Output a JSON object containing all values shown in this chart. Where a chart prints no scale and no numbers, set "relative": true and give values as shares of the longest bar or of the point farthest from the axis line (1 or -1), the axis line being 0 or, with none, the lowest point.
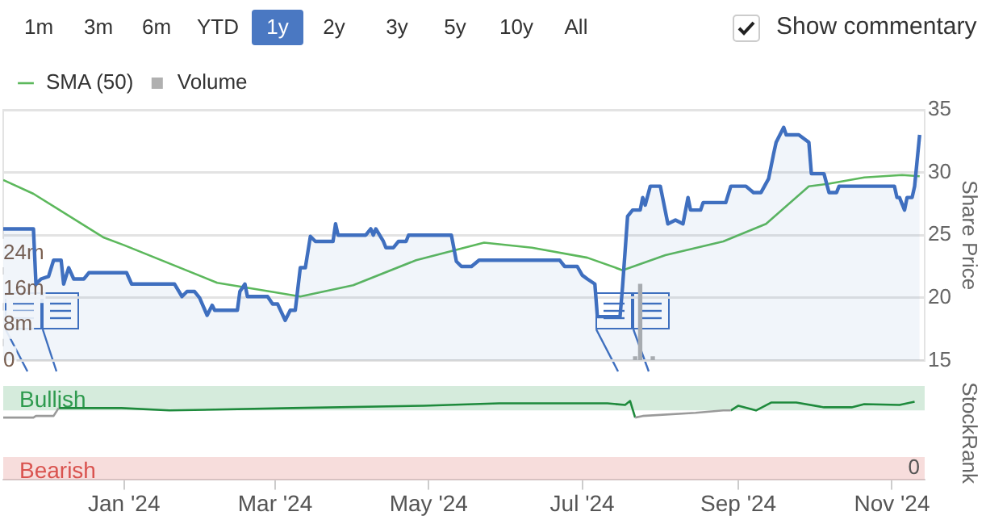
{
  "chart_data": [
    {
      "type": "line",
      "xlim": [
        "2023-11-14",
        "2024-11-14"
      ],
      "ylim": [
        15,
        35
      ],
      "yticks": [
        15,
        20,
        25,
        30,
        35
      ],
      "ylabel": "Share Price",
      "y2lim": [
        0,
        56000000
      ],
      "y2ticks": [
        {
          "value": 0,
          "label": "0"
        },
        {
          "value": 8000000,
          "label": "8m"
        },
        {
          "value": 16000000,
          "label": "16m"
        },
        {
          "value": 24000000,
          "label": "24m"
        }
      ],
      "grid": "y",
      "legend": "top left",
      "tick_labels": "y",
      "marker": "none",
      "series": [
        {
          "type": "area",
          "color": "#3f6fbf",
          "x": [
            "2023-11-14",
            "2023-11-26",
            "2023-11-27",
            "2023-11-29",
            "2023-12-02",
            "2023-12-04",
            "2023-12-07",
            "2023-12-08",
            "2023-12-10",
            "2023-12-12",
            "2023-12-16",
            "2023-12-18",
            "2024-01-02",
            "2024-01-04",
            "2024-01-21",
            "2024-01-24",
            "2024-01-26",
            "2024-01-29",
            "2024-01-31",
            "2024-02-03",
            "2024-02-05",
            "2024-02-06",
            "2024-02-15",
            "2024-02-16",
            "2024-02-18",
            "2024-02-19",
            "2024-02-27",
            "2024-02-29",
            "2024-03-02",
            "2024-03-05",
            "2024-03-07",
            "2024-03-09",
            "2024-03-11",
            "2024-03-13",
            "2024-03-15",
            "2024-03-17",
            "2024-03-24",
            "2024-03-25",
            "2024-03-26",
            "2024-04-06",
            "2024-04-08",
            "2024-04-09",
            "2024-04-10",
            "2024-04-13",
            "2024-04-14",
            "2024-04-17",
            "2024-04-19",
            "2024-04-22",
            "2024-04-23",
            "2024-05-10",
            "2024-05-12",
            "2024-05-14",
            "2024-05-18",
            "2024-05-21",
            "2024-06-22",
            "2024-06-24",
            "2024-06-29",
            "2024-07-01",
            "2024-07-03",
            "2024-07-06",
            "2024-07-07",
            "2024-07-16",
            "2024-07-17",
            "2024-07-19",
            "2024-07-21",
            "2024-07-24",
            "2024-07-25",
            "2024-07-26",
            "2024-07-28",
            "2024-08-01",
            "2024-08-04",
            "2024-08-07",
            "2024-08-10",
            "2024-08-12",
            "2024-08-13",
            "2024-08-17",
            "2024-08-18",
            "2024-08-27",
            "2024-08-29",
            "2024-09-04",
            "2024-09-07",
            "2024-09-10",
            "2024-09-13",
            "2024-09-15",
            "2024-09-16",
            "2024-09-19",
            "2024-09-20",
            "2024-09-25",
            "2024-09-29",
            "2024-09-30",
            "2024-10-05",
            "2024-10-07",
            "2024-10-10",
            "2024-10-11",
            "2024-11-02",
            "2024-11-03",
            "2024-11-04",
            "2024-11-06",
            "2024-11-07",
            "2024-11-09",
            "2024-11-10",
            "2024-11-12"
          ],
          "values": [
            25.5,
            25.5,
            21.1,
            21.5,
            21.7,
            23,
            23,
            21.1,
            22.4,
            21.5,
            21.5,
            22,
            22,
            21.1,
            21.1,
            20.1,
            20.5,
            20.5,
            20,
            18.6,
            19.4,
            19,
            19,
            20.5,
            21.1,
            20.1,
            20.1,
            19.5,
            19.5,
            18.2,
            19,
            19,
            22.4,
            22.4,
            24.9,
            24.5,
            24.5,
            25.9,
            25,
            25,
            25.5,
            25,
            25.5,
            24.5,
            24,
            24,
            24.5,
            24.5,
            25,
            25,
            22.9,
            22.5,
            22.5,
            23,
            23,
            22.5,
            22.5,
            21.8,
            21.5,
            21.1,
            18.5,
            18.5,
            20.9,
            26.5,
            27,
            27,
            28,
            27.4,
            28.9,
            28.9,
            25.9,
            26.2,
            25.9,
            28,
            27,
            27,
            27.6,
            27.6,
            28.9,
            28.9,
            28.4,
            28.4,
            29.5,
            31.5,
            32.4,
            33.6,
            33,
            33,
            32.4,
            29.9,
            29.9,
            28.4,
            28.4,
            28.9,
            28.9,
            28,
            28,
            27,
            28,
            28,
            28.9,
            33
          ]
        },
        {
          "type": "line",
          "name": "SMA (50)",
          "color": "#5cb85c",
          "x": [
            "2023-11-14",
            "2023-11-26",
            "2023-12-24",
            "2024-01-01",
            "2024-02-07",
            "2024-02-28",
            "2024-03-11",
            "2024-04-01",
            "2024-04-26",
            "2024-05-23",
            "2024-06-11",
            "2024-07-03",
            "2024-07-17",
            "2024-08-03",
            "2024-08-26",
            "2024-09-12",
            "2024-09-29",
            "2024-10-07",
            "2024-10-21",
            "2024-11-05",
            "2024-11-12"
          ],
          "values": [
            29.4,
            28.3,
            24.8,
            24.2,
            21.2,
            20.5,
            20.1,
            21,
            23,
            24.4,
            24,
            23.2,
            22.2,
            23.4,
            24.5,
            25.9,
            28.9,
            29.1,
            29.6,
            29.8,
            29.7
          ]
        },
        {
          "type": "bar",
          "name": "Volume",
          "axis": "y2",
          "color": "#b0b0b0",
          "x": [
            "2024-07-22",
            "2024-07-24",
            "2024-07-29"
          ],
          "values": [
            800000,
            17000000,
            800000
          ]
        }
      ]
    },
    {
      "type": "line",
      "relative": true,
      "xlim": [
        "2023-11-14",
        "2024-11-14"
      ],
      "xticks": [
        {
          "value": "2024-01-01",
          "label": "Jan '24"
        },
        {
          "value": "2024-03-01",
          "label": "Mar '24"
        },
        {
          "value": "2024-05-01",
          "label": "May '24"
        },
        {
          "value": "2024-07-01",
          "label": "Jul '24"
        },
        {
          "value": "2024-09-01",
          "label": "Sep '24"
        },
        {
          "value": "2024-11-01",
          "label": "Nov '24"
        }
      ],
      "annotations": [
        "0"
      ],
      "ylabel": "StockRank",
      "marker": "none",
      "bands": [
        {
          "axis": "y",
          "from": 0.88,
          "to": 1.19,
          "label": "Bullish",
          "color": "#2e9a4e"
        },
        {
          "axis": "y",
          "from": 0,
          "to": 0.29,
          "label": "Bearish",
          "color": "#d9534f"
        }
      ],
      "series": [
        {
          "color": "#9a9a9a",
          "x": [
            "2023-11-14",
            "2023-11-26",
            "2023-11-27",
            "2023-12-04",
            "2023-12-06",
            "2024-03-01",
            "2024-07-22",
            "2024-07-25",
            "2024-08-15",
            "2024-08-26",
            "2024-08-29"
          ],
          "values": [
            0.79,
            0.79,
            0.81,
            0.81,
            0.91,
            null,
            0.79,
            0.81,
            0.85,
            0.88,
            0.88
          ]
        },
        {
          "color": "#1e8a3c",
          "type": "line",
          "x": [
            "2023-12-06",
            "2023-12-31",
            "2024-01-19",
            "2024-03-08",
            "2024-04-29",
            "2024-05-29",
            "2024-07-11",
            "2024-07-18",
            "2024-07-20",
            "2024-07-22",
            "2024-08-01",
            "2024-08-29",
            "2024-09-01",
            "2024-09-08",
            "2024-09-14",
            "2024-09-24",
            "2024-10-05",
            "2024-10-16",
            "2024-10-21",
            "2024-11-04",
            "2024-11-10"
          ],
          "values": [
            0.91,
            0.91,
            0.88,
            0.91,
            0.94,
            0.97,
            0.97,
            0.95,
            1,
            0.79,
            null,
            0.88,
            0.94,
            0.88,
            0.98,
            0.98,
            0.92,
            0.92,
            0.96,
            0.95,
            0.99
          ]
        }
      ]
    },
    {
      "type": "other",
      "annotations": [
        "1m",
        "3m",
        "6m",
        "YTD",
        "1y",
        "2y",
        "3y",
        "5y",
        "10y",
        "All",
        "Show commentary"
      ]
    }
  ]
}
